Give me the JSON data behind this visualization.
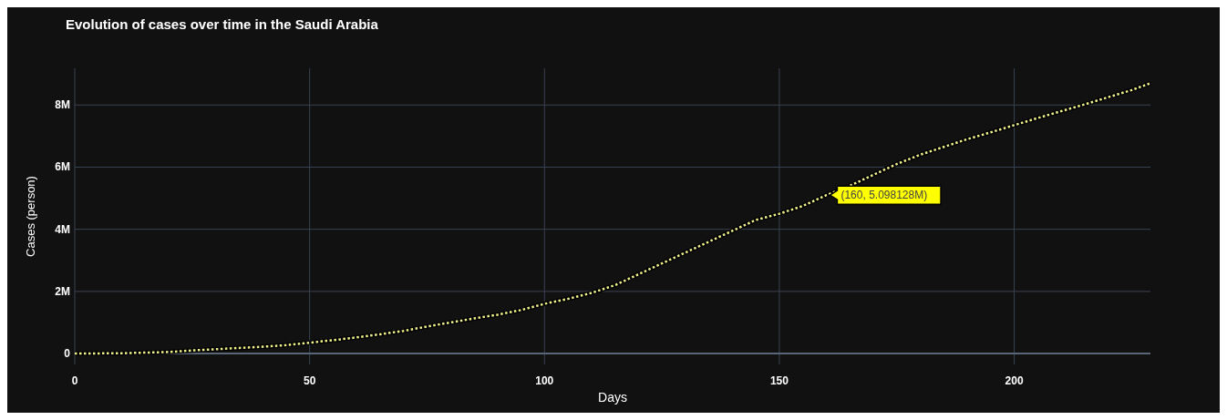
{
  "chart_data": {
    "type": "line",
    "title": "Evolution of cases over time in the Saudi Arabia",
    "xlabel": "Days",
    "ylabel": "Cases (person)",
    "x": [
      0,
      10,
      20,
      25,
      30,
      35,
      40,
      45,
      50,
      55,
      60,
      65,
      70,
      75,
      80,
      85,
      90,
      95,
      100,
      105,
      110,
      115,
      120,
      125,
      130,
      135,
      140,
      145,
      150,
      155,
      160,
      165,
      170,
      175,
      180,
      185,
      190,
      195,
      200,
      205,
      210,
      215,
      220,
      225,
      229
    ],
    "series": [
      {
        "color": "#f0f08c",
        "values": [
          0,
          10000,
          50000,
          100000,
          140000,
          180000,
          220000,
          270000,
          350000,
          430000,
          520000,
          620000,
          730000,
          870000,
          1000000,
          1130000,
          1250000,
          1400000,
          1600000,
          1760000,
          1950000,
          2200000,
          2550000,
          2900000,
          3250000,
          3600000,
          3950000,
          4300000,
          4500000,
          4750000,
          5098128,
          5400000,
          5750000,
          6100000,
          6400000,
          6650000,
          6900000,
          7120000,
          7350000,
          7580000,
          7800000,
          8020000,
          8250000,
          8480000,
          8700000
        ]
      }
    ],
    "xlim": [
      0,
      229
    ],
    "ylim": [
      -350000,
      9180000
    ],
    "xticks": [
      0,
      50,
      100,
      150,
      200
    ],
    "yticks": [
      0,
      {
        "value": 2000000,
        "label": "2M"
      },
      {
        "value": 4000000,
        "label": "4M"
      },
      {
        "value": 6000000,
        "label": "6M"
      },
      {
        "value": 8000000,
        "label": "8M"
      }
    ],
    "grid": true,
    "line_style": "dotted",
    "marker": "none",
    "annotations": [
      {
        "text": "(160, 5.098128M)",
        "x": 160,
        "y": 5098128
      }
    ]
  }
}
